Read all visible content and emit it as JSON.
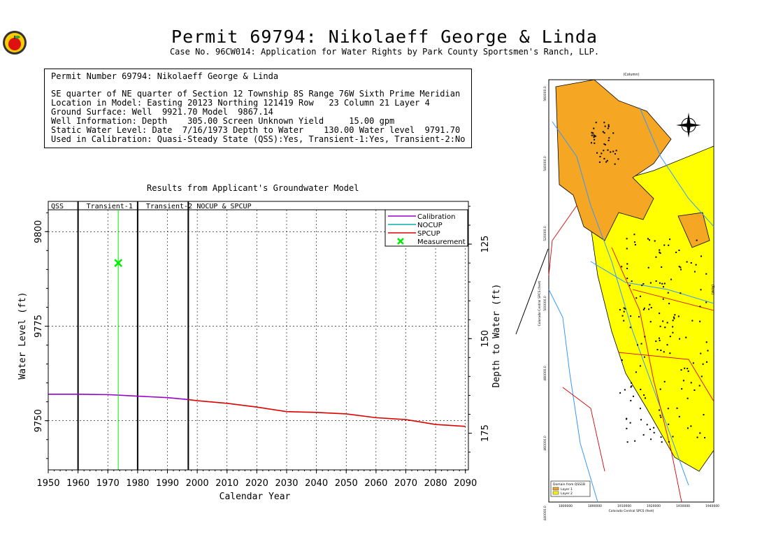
{
  "header": {
    "title": "Permit 69794:  Nikolaeff George & Linda",
    "subtitle": "Case No. 96CW014: Application for Water Rights by Park County Sportsmen's Ranch, LLP."
  },
  "info_box": {
    "lines": [
      "Permit Number 69794: Nikolaeff George & Linda",
      "",
      "SE quarter of NE quarter of Section 12 Township 8S Range 76W Sixth Prime Meridian",
      "Location in Model: Easting 20123 Northing 121419 Row   23 Column 21 Layer 4",
      "Ground Surface: Well  9921.70 Model  9867.14",
      "Well Information: Depth    305.00 Screen Unknown Yield     15.00 gpm",
      "Static Water Level: Date  7/16/1973 Depth to Water    130.00 Water level  9791.70",
      "Used in Calibration: Quasi-Steady State (QSS):Yes, Transient-1:Yes, Transient-2:No"
    ]
  },
  "colors": {
    "calibration": "#9900cc",
    "nocup": "#00b0b0",
    "spcup": "#dd0000",
    "measurement": "#00ee00"
  },
  "chart_data": {
    "type": "line",
    "title": "Results from Applicant's Groundwater Model",
    "xlabel": "Calendar Year",
    "ylabel": "Water Level (ft)",
    "y2label": "Depth to Water (ft)",
    "xlim": [
      1950,
      2091
    ],
    "ylim": [
      9737,
      9808
    ],
    "x_ticks": [
      1950,
      1960,
      1970,
      1980,
      1990,
      2000,
      2010,
      2020,
      2030,
      2040,
      2050,
      2060,
      2070,
      2080,
      2090
    ],
    "y_ticks": [
      9750,
      9775,
      9800
    ],
    "y2_ticks": [
      125,
      150,
      175
    ],
    "grid": true,
    "periods": [
      {
        "label": "QSS",
        "start": 1950,
        "end": 1960
      },
      {
        "label": "Transient-1",
        "start": 1960,
        "end": 1980
      },
      {
        "label": "Transient-2",
        "start": 1980,
        "end": 1997
      },
      {
        "label": "NOCUP & SPCUP",
        "start": 1997,
        "end": 2091
      }
    ],
    "series": [
      {
        "name": "Calibration",
        "x": [
          1950,
          1960,
          1970,
          1975,
          1980,
          1985,
          1990,
          1997
        ],
        "y": [
          9757.0,
          9757.0,
          9756.9,
          9756.7,
          9756.5,
          9756.3,
          9756.1,
          9755.6
        ]
      },
      {
        "name": "NOCUP",
        "x": [],
        "y": []
      },
      {
        "name": "SPCUP",
        "x": [
          1997,
          2000,
          2010,
          2020,
          2030,
          2040,
          2050,
          2060,
          2070,
          2080,
          2090
        ],
        "y": [
          9755.6,
          9755.3,
          9754.6,
          9753.6,
          9752.4,
          9752.2,
          9751.8,
          9750.8,
          9750.3,
          9749.0,
          9748.5
        ]
      },
      {
        "name": "Measurement",
        "x": [
          1973.5
        ],
        "y": [
          9791.7
        ]
      }
    ]
  },
  "map": {
    "legend_title": "Domain from QSS1B",
    "legend_items": [
      "Layer 1",
      "Layer 2"
    ],
    "x_label": "Colorado Central SPCS (feet)",
    "y_label": "Colorado Central SPCS (feet)",
    "column_label": "(Column)",
    "row_label": "(Row)",
    "x_ticks": [
      "1800000",
      "1890000",
      "1910000",
      "1920000",
      "1930000",
      "1940000"
    ],
    "y_ticks": [
      "560000.0",
      "540000.0",
      "520000.0",
      "500000.0",
      "480000.0",
      "460000.0",
      "440000.0"
    ],
    "colors": {
      "layer1": "#f5a623",
      "layer2": "#ffff00",
      "stream": "#3399ff",
      "road": "#dd0000"
    }
  }
}
